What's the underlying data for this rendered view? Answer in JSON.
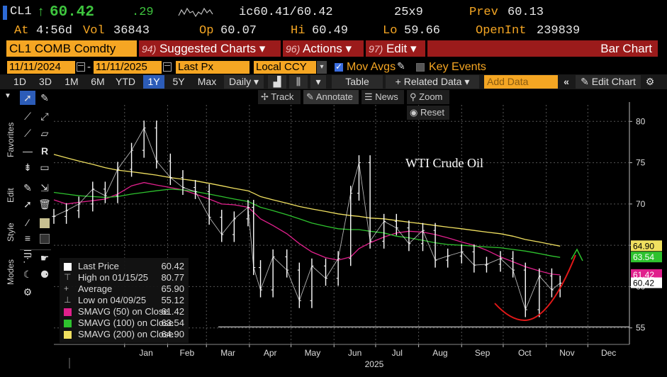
{
  "quote": {
    "ticker": "CL1",
    "arrow": "↑",
    "last": "60.42",
    "change": ".29",
    "ic_label": "ic60.41/60.42",
    "size": "25x9",
    "prev_label": "Prev",
    "prev_value": "60.13",
    "at_label": "At",
    "time": "4:56d",
    "vol_label": "Vol",
    "vol_value": "36843",
    "op_label": "Op",
    "op_value": "60.07",
    "hi_label": "Hi",
    "hi_value": "60.49",
    "lo_label": "Lo",
    "lo_value": "59.66",
    "oi_label": "OpenInt",
    "oi_value": "239839"
  },
  "menubar": {
    "security": "CL1 COMB Comdty",
    "suggested_num": "94)",
    "suggested": "Suggested Charts ▾",
    "actions_num": "96)",
    "actions": "Actions ▾",
    "edit_num": "97)",
    "edit": "Edit ▾",
    "chart_type": "Bar Chart"
  },
  "options": {
    "start_date": "11/11/2024",
    "dash": "-",
    "end_date": "11/11/2025",
    "field": "Last Px",
    "currency": "Local CCY",
    "mov_avgs": "Mov Avgs",
    "key_events": "Key Events"
  },
  "ranges": {
    "items": [
      "1D",
      "3D",
      "1M",
      "6M",
      "YTD",
      "1Y",
      "5Y",
      "Max"
    ],
    "active": "1Y",
    "period": "Daily ▾",
    "table": "Table",
    "related": "+ Related Data ▾",
    "add_data_placeholder": "Add Data",
    "edit_chart": "Edit Chart"
  },
  "subtools": {
    "track": "Track",
    "annotate": "Annotate",
    "news": "News",
    "zoom": "Zoom",
    "reset": "Reset"
  },
  "sidebar": {
    "favorites": "Favorites",
    "edit": "Edit",
    "style": "Style",
    "modes": "Modes"
  },
  "chart_data": {
    "type": "bar",
    "title": "WTI Crude Oil",
    "xlabel": "2025",
    "x_ticks": [
      "Jan",
      "Feb",
      "Mar",
      "Apr",
      "May",
      "Jun",
      "Jul",
      "Aug",
      "Sep",
      "Oct",
      "Nov",
      "Dec"
    ],
    "y_ticks": [
      55,
      60,
      65,
      70,
      75,
      80
    ],
    "ylim": [
      53,
      82
    ],
    "series": [
      {
        "name": "Last Price",
        "color": "#ffffff",
        "dates": [
          "2024-11-11",
          "2024-11-20",
          "2024-11-29",
          "2024-12-09",
          "2024-12-18",
          "2024-12-27",
          "2025-01-06",
          "2025-01-15",
          "2025-01-24",
          "2025-02-03",
          "2025-02-12",
          "2025-02-21",
          "2025-03-03",
          "2025-03-12",
          "2025-03-21",
          "2025-03-31",
          "2025-04-04",
          "2025-04-09",
          "2025-04-18",
          "2025-04-28",
          "2025-05-07",
          "2025-05-16",
          "2025-05-26",
          "2025-06-04",
          "2025-06-13",
          "2025-06-19",
          "2025-06-27",
          "2025-07-07",
          "2025-07-16",
          "2025-07-25",
          "2025-08-04",
          "2025-08-13",
          "2025-08-22",
          "2025-09-01",
          "2025-09-10",
          "2025-09-19",
          "2025-09-29",
          "2025-10-08",
          "2025-10-17",
          "2025-10-27",
          "2025-11-05",
          "2025-11-11"
        ],
        "values": [
          68.5,
          69.2,
          70.0,
          71.8,
          71.0,
          74.2,
          76.5,
          79.2,
          75.2,
          73.2,
          72.0,
          71.5,
          68.4,
          66.3,
          68.2,
          69.6,
          62.3,
          59.6,
          63.6,
          62.0,
          58.3,
          62.5,
          61.0,
          63.4,
          71.3,
          75.0,
          65.5,
          67.9,
          67.1,
          65.2,
          66.8,
          63.2,
          63.7,
          64.2,
          62.6,
          62.7,
          63.4,
          62.0,
          57.2,
          61.3,
          59.6,
          60.42
        ]
      },
      {
        "name": "SMAVG (50) on Close",
        "color": "#e0208c",
        "values": [
          70.5,
          70.0,
          70.2,
          70.4,
          70.6,
          71.2,
          72.2,
          72.6,
          72.3,
          72.0,
          71.7,
          71.2,
          70.6,
          70.0,
          69.9,
          69.6,
          69.0,
          68.2,
          67.4,
          66.4,
          65.2,
          64.2,
          63.5,
          63.2,
          63.6,
          64.6,
          65.3,
          66.0,
          66.5,
          66.7,
          66.6,
          66.3,
          65.9,
          65.4,
          65.0,
          64.4,
          63.6,
          63.0,
          62.4,
          61.9,
          61.5,
          61.42
        ]
      },
      {
        "name": "SMAVG (100) on Close",
        "color": "#2ec22e",
        "values": [
          71.4,
          71.2,
          71.0,
          70.9,
          70.8,
          70.9,
          71.2,
          71.4,
          71.6,
          71.8,
          71.7,
          71.5,
          71.2,
          70.9,
          70.6,
          70.3,
          70.0,
          69.6,
          69.2,
          68.7,
          68.2,
          67.7,
          67.3,
          67.0,
          66.9,
          66.9,
          66.7,
          66.5,
          66.1,
          65.9,
          65.6,
          65.3,
          65.1,
          65.0,
          64.9,
          64.8,
          64.7,
          64.5,
          64.3,
          64.0,
          63.7,
          63.54
        ]
      },
      {
        "name": "SMAVG (200) on Close",
        "color": "#f0e060",
        "values": [
          76.0,
          75.6,
          75.2,
          74.8,
          74.4,
          74.1,
          73.9,
          73.7,
          73.5,
          73.2,
          73.0,
          72.8,
          72.5,
          72.2,
          71.9,
          71.6,
          71.3,
          70.9,
          70.5,
          70.1,
          69.7,
          69.4,
          69.1,
          68.8,
          68.6,
          68.5,
          68.3,
          68.2,
          68.0,
          67.8,
          67.6,
          67.4,
          67.2,
          67.0,
          66.8,
          66.6,
          66.4,
          66.1,
          65.7,
          65.4,
          65.1,
          64.9
        ]
      }
    ],
    "price_labels": [
      {
        "value": "64.90",
        "color": "#f0e060",
        "text_color": "#000"
      },
      {
        "value": "63.54",
        "color": "#2ec22e",
        "text_color": "#fff"
      },
      {
        "value": "61.42",
        "color": "#e0208c",
        "text_color": "#fff"
      },
      {
        "value": "60.42",
        "color": "#ffffff",
        "text_color": "#000"
      }
    ],
    "legend": [
      {
        "label": "Last Price",
        "value": "60.42",
        "color": "#ffffff",
        "kind": "box"
      },
      {
        "label": "High on 01/15/25",
        "value": "80.77",
        "color": "#aaaaaa",
        "kind": "high"
      },
      {
        "label": "Average",
        "value": "65.90",
        "color": "#aaaaaa",
        "kind": "avg"
      },
      {
        "label": "Low on 04/09/25",
        "value": "55.12",
        "color": "#aaaaaa",
        "kind": "low"
      },
      {
        "label": "SMAVG (50)  on Close",
        "value": "61.42",
        "color": "#e0208c",
        "kind": "box"
      },
      {
        "label": "SMAVG (100)  on Close",
        "value": "63.54",
        "color": "#2ec22e",
        "kind": "box"
      },
      {
        "label": "SMAVG (200)  on Close",
        "value": "64.90",
        "color": "#f0e060",
        "kind": "box"
      }
    ],
    "low_line": 55.12,
    "grid": true
  }
}
